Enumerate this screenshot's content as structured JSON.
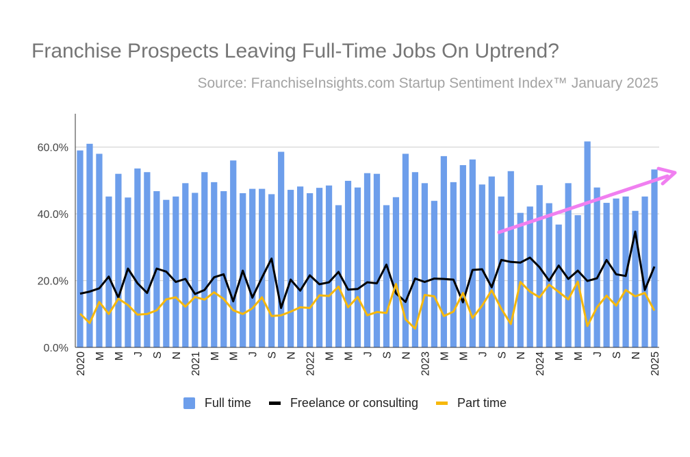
{
  "chart_data": {
    "type": "bar+line",
    "title": "Franchise Prospects Leaving Full-Time Jobs On Uptrend?",
    "subtitle": "Source: FranchiseInsights.com Startup Sentiment Index™ January 2025",
    "ylim": [
      0,
      70
    ],
    "yticks": [
      0,
      20,
      40,
      60
    ],
    "ytick_labels": [
      "0.0%",
      "20.0%",
      "40.0%",
      "60.0%"
    ],
    "grid": true,
    "legend_position": "bottom",
    "x_start": "2020-01",
    "x_end": "2025-01",
    "categories": [
      "2020-01",
      "2020-02",
      "2020-03",
      "2020-04",
      "2020-05",
      "2020-06",
      "2020-07",
      "2020-08",
      "2020-09",
      "2020-10",
      "2020-11",
      "2020-12",
      "2021-01",
      "2021-02",
      "2021-03",
      "2021-04",
      "2021-05",
      "2021-06",
      "2021-07",
      "2021-08",
      "2021-09",
      "2021-10",
      "2021-11",
      "2021-12",
      "2022-01",
      "2022-02",
      "2022-03",
      "2022-04",
      "2022-05",
      "2022-06",
      "2022-07",
      "2022-08",
      "2022-09",
      "2022-10",
      "2022-11",
      "2022-12",
      "2023-01",
      "2023-02",
      "2023-03",
      "2023-04",
      "2023-05",
      "2023-06",
      "2023-07",
      "2023-08",
      "2023-09",
      "2023-10",
      "2023-11",
      "2023-12",
      "2024-01",
      "2024-02",
      "2024-03",
      "2024-04",
      "2024-05",
      "2024-06",
      "2024-07",
      "2024-08",
      "2024-09",
      "2024-10",
      "2024-11",
      "2024-12",
      "2025-01"
    ],
    "xtick_labels": [
      "2020",
      "",
      "M",
      "",
      "M",
      "",
      "J",
      "",
      "S",
      "",
      "N",
      "",
      "2021",
      "",
      "M",
      "",
      "M",
      "",
      "J",
      "",
      "S",
      "",
      "N",
      "",
      "2022",
      "",
      "M",
      "",
      "M",
      "",
      "J",
      "",
      "S",
      "",
      "N",
      "",
      "2023",
      "",
      "M",
      "",
      "M",
      "",
      "J",
      "",
      "S",
      "",
      "N",
      "",
      "2024",
      "",
      "M",
      "",
      "M",
      "",
      "J",
      "",
      "S",
      "",
      "N",
      "",
      "2025"
    ],
    "series": [
      {
        "name": "Full time",
        "type": "bar",
        "color": "#6d9eeb",
        "values": [
          59.0,
          61.0,
          58.0,
          45.2,
          52.0,
          44.9,
          53.6,
          52.5,
          46.8,
          44.2,
          45.2,
          49.2,
          46.3,
          52.5,
          49.5,
          46.8,
          56.0,
          46.2,
          47.5,
          47.5,
          45.9,
          58.6,
          47.2,
          48.2,
          46.2,
          47.8,
          48.5,
          42.6,
          49.9,
          47.9,
          52.2,
          52.0,
          42.6,
          45.0,
          58.0,
          52.5,
          49.2,
          43.9,
          57.3,
          49.5,
          54.6,
          56.3,
          48.8,
          51.2,
          45.2,
          52.8,
          40.3,
          42.2,
          48.6,
          43.2,
          36.8,
          49.2,
          39.6,
          61.7,
          47.9,
          43.3,
          44.6,
          45.2,
          40.9,
          45.2,
          53.3
        ]
      },
      {
        "name": "Freelance or consulting",
        "type": "line",
        "color": "#000000",
        "values": [
          16.1,
          16.7,
          17.7,
          21.2,
          14.9,
          23.6,
          19.2,
          16.3,
          23.6,
          22.7,
          19.6,
          20.5,
          16.0,
          17.2,
          21.0,
          21.9,
          13.8,
          23.0,
          14.9,
          20.9,
          26.6,
          11.8,
          20.3,
          17.0,
          21.6,
          18.9,
          19.5,
          22.6,
          17.3,
          17.5,
          19.5,
          19.2,
          24.8,
          16.2,
          13.6,
          20.6,
          19.6,
          20.6,
          20.5,
          20.3,
          13.5,
          23.2,
          23.4,
          18.0,
          26.2,
          25.6,
          25.4,
          26.9,
          24.0,
          20.0,
          24.5,
          20.5,
          23.0,
          19.9,
          20.7,
          26.2,
          21.9,
          21.4,
          34.7,
          17.2,
          24.2
        ]
      },
      {
        "name": "Part time",
        "type": "line",
        "color": "#f6b80c",
        "values": [
          10.1,
          7.3,
          13.6,
          10.0,
          14.6,
          12.7,
          9.8,
          10.0,
          11.1,
          14.4,
          15.0,
          12.2,
          15.1,
          14.3,
          16.5,
          14.5,
          11.1,
          10.0,
          11.7,
          15.0,
          9.4,
          9.6,
          10.7,
          12.0,
          11.8,
          15.6,
          15.4,
          18.2,
          12.0,
          15.1,
          9.6,
          10.6,
          10.3,
          19.0,
          8.4,
          5.6,
          15.7,
          15.3,
          9.4,
          10.7,
          16.3,
          8.8,
          12.5,
          17.1,
          11.6,
          7.0,
          19.6,
          16.7,
          15.0,
          18.8,
          16.6,
          14.4,
          19.7,
          6.4,
          12.0,
          15.5,
          12.5,
          17.2,
          15.3,
          16.3,
          11.0
        ]
      }
    ],
    "annotation": {
      "type": "arrow",
      "color": "#f07ff0"
    }
  }
}
